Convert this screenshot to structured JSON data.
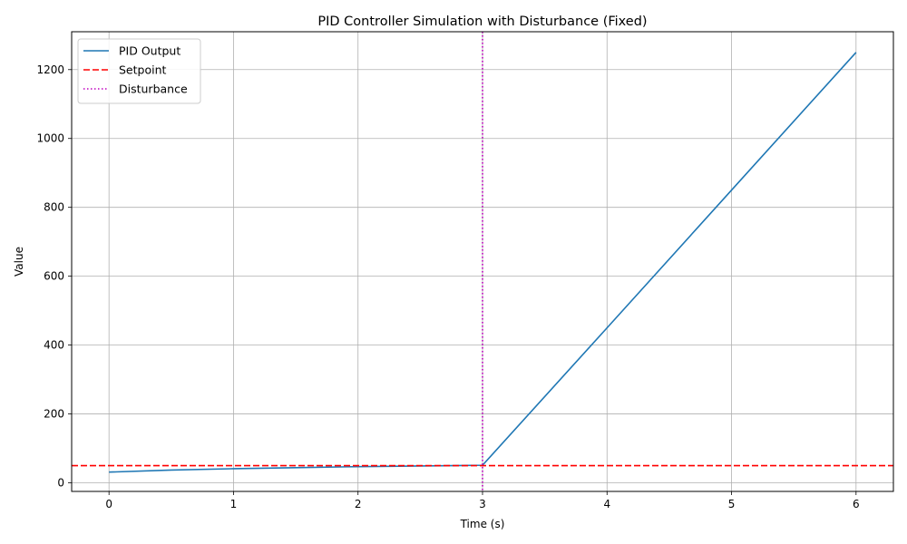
{
  "chart_data": {
    "type": "line",
    "title": "PID Controller Simulation with Disturbance (Fixed)",
    "xlabel": "Time (s)",
    "ylabel": "Value",
    "xlim": [
      -0.3,
      6.3
    ],
    "ylim": [
      -25,
      1310
    ],
    "xticks": [
      0,
      1,
      2,
      3,
      4,
      5,
      6
    ],
    "yticks": [
      0,
      200,
      400,
      600,
      800,
      1000,
      1200
    ],
    "grid": true,
    "legend_position": "top-left",
    "series": [
      {
        "name": "PID Output",
        "style": "solid",
        "color": "#1f77b4",
        "x": [
          0,
          0.5,
          1,
          1.5,
          2,
          2.5,
          3,
          4,
          5,
          6
        ],
        "y": [
          31,
          37,
          41,
          44,
          47,
          49,
          51,
          450,
          850,
          1250
        ]
      }
    ],
    "reference_lines": [
      {
        "name": "Setpoint",
        "orientation": "horizontal",
        "value": 50,
        "style": "dashed",
        "color": "#ff0000"
      },
      {
        "name": "Disturbance",
        "orientation": "vertical",
        "value": 3,
        "style": "dotted",
        "color": "#bf00bf"
      }
    ]
  }
}
